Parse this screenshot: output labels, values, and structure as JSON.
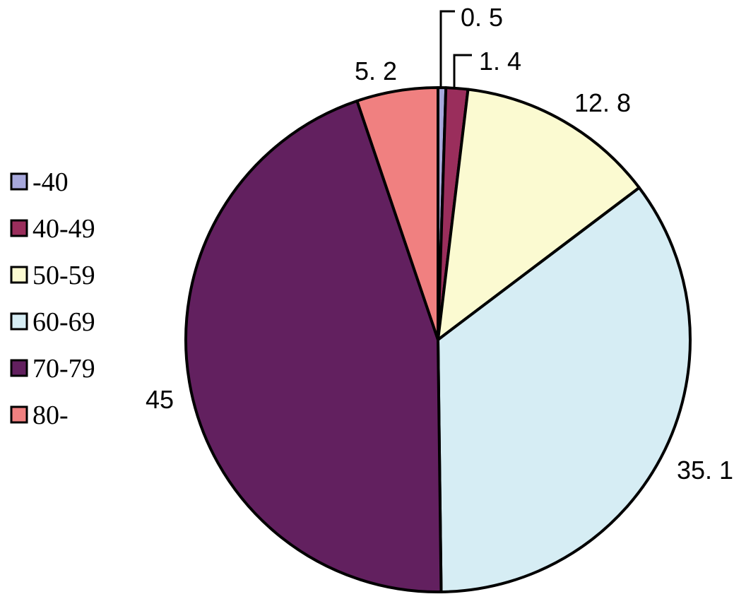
{
  "chart_data": {
    "type": "pie",
    "title": "",
    "categories": [
      "-40",
      "40-49",
      "50-59",
      "60-69",
      "70-79",
      "80-"
    ],
    "values": [
      0.5,
      1.4,
      12.8,
      35.1,
      45,
      5.2
    ],
    "data_labels": [
      "0. 5",
      "1. 4",
      "12. 8",
      "35. 1",
      "45",
      "5. 2"
    ],
    "colors": [
      "#a7a8dc",
      "#9a2e5c",
      "#fbfad1",
      "#d6edf4",
      "#62205f",
      "#f08080"
    ],
    "start": "12 o'clock",
    "direction": "clockwise",
    "legend": {
      "position": "left",
      "entries": [
        "-40",
        "40-49",
        "50-59",
        "60-69",
        "70-79",
        "80-"
      ]
    }
  }
}
